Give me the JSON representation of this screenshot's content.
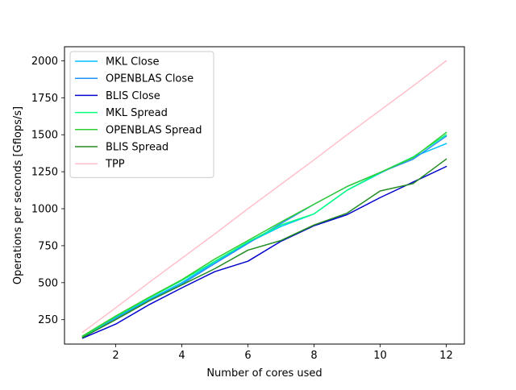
{
  "chart_data": {
    "type": "line",
    "title": "",
    "xlabel": "Number of cores used",
    "ylabel": "Operations per seconds [Gflops/s]",
    "xlim": [
      0.45,
      12.55
    ],
    "ylim": [
      85,
      2095
    ],
    "xticks": [
      2,
      4,
      6,
      8,
      10,
      12
    ],
    "yticks": [
      250,
      500,
      750,
      1000,
      1250,
      1500,
      1750,
      2000
    ],
    "grid": false,
    "legend_position": "top-left",
    "x": [
      1,
      2,
      3,
      4,
      5,
      6,
      7,
      8,
      9,
      10,
      11,
      12
    ],
    "series": [
      {
        "name": "MKL Close",
        "color": "#00bfff",
        "values": [
          135,
          265,
          385,
          500,
          640,
          770,
          880,
          965,
          1125,
          1240,
          1350,
          1440
        ]
      },
      {
        "name": "OPENBLAS Close",
        "color": "#1e90ff",
        "values": [
          135,
          260,
          380,
          490,
          630,
          765,
          900,
          1030,
          1150,
          1245,
          1335,
          1490
        ]
      },
      {
        "name": "BLIS Close",
        "color": "#0000cd",
        "values": [
          125,
          220,
          350,
          465,
          575,
          645,
          780,
          885,
          960,
          1075,
          1180,
          1285
        ]
      },
      {
        "name": "MKL Spread",
        "color": "#00ff7f",
        "values": [
          135,
          270,
          395,
          515,
          645,
          775,
          890,
          965,
          1125,
          1245,
          1350,
          1500
        ]
      },
      {
        "name": "OPENBLAS Spread",
        "color": "#32cd32",
        "values": [
          140,
          275,
          400,
          520,
          660,
          785,
          910,
          1030,
          1150,
          1245,
          1345,
          1515
        ]
      },
      {
        "name": "BLIS Spread",
        "color": "#228b22",
        "values": [
          130,
          250,
          375,
          485,
          595,
          720,
          785,
          890,
          970,
          1120,
          1170,
          1335
        ]
      },
      {
        "name": "TPP",
        "color": "#ffc0cb",
        "values": [
          165,
          330,
          500,
          665,
          830,
          1000,
          1165,
          1330,
          1500,
          1665,
          1830,
          2000
        ]
      }
    ]
  }
}
